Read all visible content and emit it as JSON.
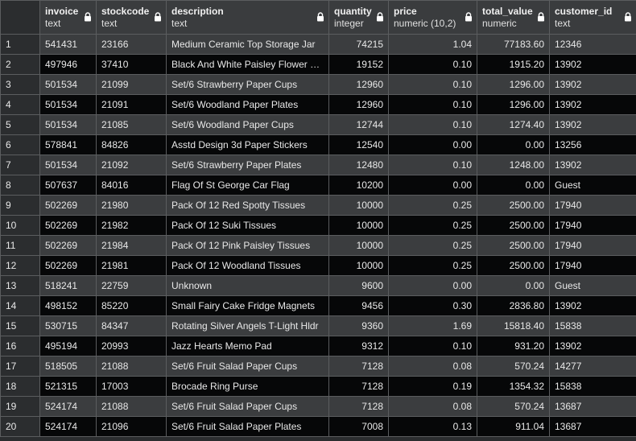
{
  "columns": [
    {
      "name": "invoice",
      "type": "text"
    },
    {
      "name": "stockcode",
      "type": "text"
    },
    {
      "name": "description",
      "type": "text"
    },
    {
      "name": "quantity",
      "type": "integer"
    },
    {
      "name": "price",
      "type": "numeric (10,2)"
    },
    {
      "name": "total_value",
      "type": "numeric"
    },
    {
      "name": "customer_id",
      "type": "text"
    }
  ],
  "rows": [
    {
      "n": "1",
      "invoice": "541431",
      "stockcode": "23166",
      "description": "Medium Ceramic Top Storage Jar",
      "quantity": "74215",
      "price": "1.04",
      "total_value": "77183.60",
      "customer_id": "12346"
    },
    {
      "n": "2",
      "invoice": "497946",
      "stockcode": "37410",
      "description": "Black And White Paisley Flower …",
      "quantity": "19152",
      "price": "0.10",
      "total_value": "1915.20",
      "customer_id": "13902"
    },
    {
      "n": "3",
      "invoice": "501534",
      "stockcode": "21099",
      "description": "Set/6 Strawberry Paper Cups",
      "quantity": "12960",
      "price": "0.10",
      "total_value": "1296.00",
      "customer_id": "13902"
    },
    {
      "n": "4",
      "invoice": "501534",
      "stockcode": "21091",
      "description": "Set/6 Woodland Paper Plates",
      "quantity": "12960",
      "price": "0.10",
      "total_value": "1296.00",
      "customer_id": "13902"
    },
    {
      "n": "5",
      "invoice": "501534",
      "stockcode": "21085",
      "description": "Set/6 Woodland Paper Cups",
      "quantity": "12744",
      "price": "0.10",
      "total_value": "1274.40",
      "customer_id": "13902"
    },
    {
      "n": "6",
      "invoice": "578841",
      "stockcode": "84826",
      "description": "Asstd Design 3d Paper Stickers",
      "quantity": "12540",
      "price": "0.00",
      "total_value": "0.00",
      "customer_id": "13256"
    },
    {
      "n": "7",
      "invoice": "501534",
      "stockcode": "21092",
      "description": "Set/6 Strawberry Paper Plates",
      "quantity": "12480",
      "price": "0.10",
      "total_value": "1248.00",
      "customer_id": "13902"
    },
    {
      "n": "8",
      "invoice": "507637",
      "stockcode": "84016",
      "description": "Flag Of St George Car Flag",
      "quantity": "10200",
      "price": "0.00",
      "total_value": "0.00",
      "customer_id": "Guest"
    },
    {
      "n": "9",
      "invoice": "502269",
      "stockcode": "21980",
      "description": "Pack Of 12 Red Spotty Tissues",
      "quantity": "10000",
      "price": "0.25",
      "total_value": "2500.00",
      "customer_id": "17940"
    },
    {
      "n": "10",
      "invoice": "502269",
      "stockcode": "21982",
      "description": "Pack Of 12 Suki Tissues",
      "quantity": "10000",
      "price": "0.25",
      "total_value": "2500.00",
      "customer_id": "17940"
    },
    {
      "n": "11",
      "invoice": "502269",
      "stockcode": "21984",
      "description": "Pack Of 12 Pink Paisley Tissues",
      "quantity": "10000",
      "price": "0.25",
      "total_value": "2500.00",
      "customer_id": "17940"
    },
    {
      "n": "12",
      "invoice": "502269",
      "stockcode": "21981",
      "description": "Pack Of 12 Woodland Tissues",
      "quantity": "10000",
      "price": "0.25",
      "total_value": "2500.00",
      "customer_id": "17940"
    },
    {
      "n": "13",
      "invoice": "518241",
      "stockcode": "22759",
      "description": "Unknown",
      "quantity": "9600",
      "price": "0.00",
      "total_value": "0.00",
      "customer_id": "Guest"
    },
    {
      "n": "14",
      "invoice": "498152",
      "stockcode": "85220",
      "description": "Small Fairy Cake Fridge Magnets",
      "quantity": "9456",
      "price": "0.30",
      "total_value": "2836.80",
      "customer_id": "13902"
    },
    {
      "n": "15",
      "invoice": "530715",
      "stockcode": "84347",
      "description": "Rotating Silver Angels T-Light Hldr",
      "quantity": "9360",
      "price": "1.69",
      "total_value": "15818.40",
      "customer_id": "15838"
    },
    {
      "n": "16",
      "invoice": "495194",
      "stockcode": "20993",
      "description": "Jazz Hearts Memo Pad",
      "quantity": "9312",
      "price": "0.10",
      "total_value": "931.20",
      "customer_id": "13902"
    },
    {
      "n": "17",
      "invoice": "518505",
      "stockcode": "21088",
      "description": "Set/6 Fruit Salad Paper Cups",
      "quantity": "7128",
      "price": "0.08",
      "total_value": "570.24",
      "customer_id": "14277"
    },
    {
      "n": "18",
      "invoice": "521315",
      "stockcode": "17003",
      "description": "Brocade Ring Purse",
      "quantity": "7128",
      "price": "0.19",
      "total_value": "1354.32",
      "customer_id": "15838"
    },
    {
      "n": "19",
      "invoice": "524174",
      "stockcode": "21088",
      "description": "Set/6 Fruit Salad Paper Cups",
      "quantity": "7128",
      "price": "0.08",
      "total_value": "570.24",
      "customer_id": "13687"
    },
    {
      "n": "20",
      "invoice": "524174",
      "stockcode": "21096",
      "description": "Set/6 Fruit Salad  Paper Plates",
      "quantity": "7008",
      "price": "0.13",
      "total_value": "911.04",
      "customer_id": "13687"
    }
  ],
  "icons": {
    "column_lock": "lock-icon"
  },
  "colors": {
    "header_bg": "#3a3c3e",
    "row_odd": "#3b3d3f",
    "row_even": "#060708",
    "border": "#5b5d5f",
    "text": "#e8e8e8"
  }
}
